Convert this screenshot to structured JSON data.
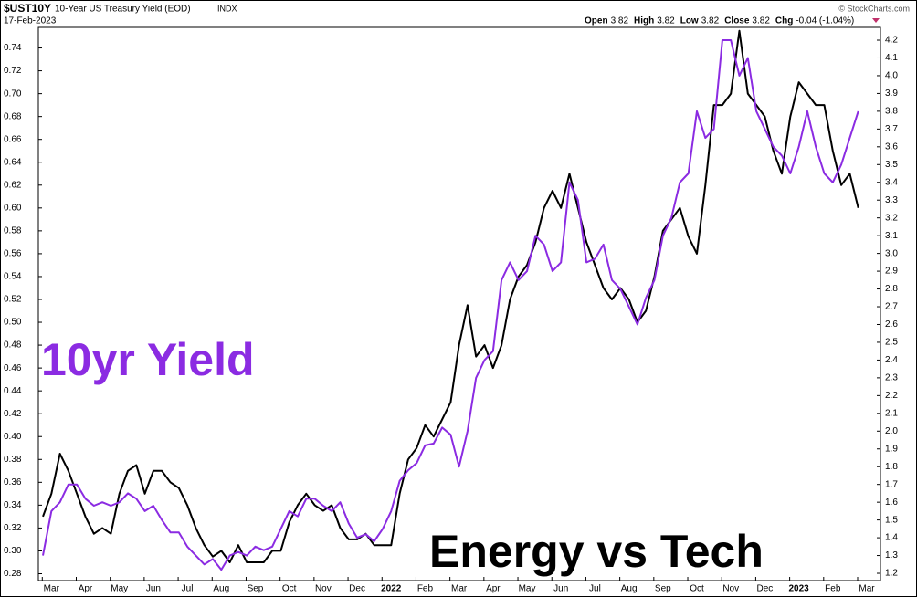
{
  "header": {
    "symbol": "$UST10Y",
    "name": "10-Year US Treasury Yield (EOD)",
    "exchange": "INDX",
    "date": "17-Feb-2023",
    "copyright": "© StockCharts.com",
    "quote": [
      {
        "label": "Open",
        "value": "3.82"
      },
      {
        "label": "High",
        "value": "3.82"
      },
      {
        "label": "Low",
        "value": "3.82"
      },
      {
        "label": "Close",
        "value": "3.82"
      },
      {
        "label": "Chg",
        "value": "-0.04 (-1.04%)"
      }
    ]
  },
  "chart_data": {
    "type": "line",
    "categories": [
      null,
      "Mar",
      null,
      null,
      null,
      "Apr",
      null,
      null,
      null,
      "May",
      null,
      null,
      null,
      "Jun",
      null,
      null,
      null,
      "Jul",
      null,
      null,
      null,
      "Aug",
      null,
      null,
      null,
      "Sep",
      null,
      null,
      null,
      "Oct",
      null,
      null,
      null,
      "Nov",
      null,
      null,
      null,
      "Dec",
      null,
      null,
      null,
      "2022",
      null,
      null,
      null,
      "Feb",
      null,
      null,
      null,
      "Mar",
      null,
      null,
      null,
      "Apr",
      null,
      null,
      null,
      "May",
      null,
      null,
      null,
      "Jun",
      null,
      null,
      null,
      "Jul",
      null,
      null,
      null,
      "Aug",
      null,
      null,
      null,
      "Sep",
      null,
      null,
      null,
      "Oct",
      null,
      null,
      null,
      "Nov",
      null,
      null,
      null,
      "Dec",
      null,
      null,
      null,
      "2023",
      null,
      null,
      null,
      "Feb",
      null,
      null,
      null,
      "Mar"
    ],
    "series": [
      {
        "name": "Energy vs Tech",
        "color": "#000000",
        "axis": "y",
        "values": [
          0.33,
          0.35,
          0.385,
          0.37,
          0.35,
          0.33,
          0.315,
          0.32,
          0.315,
          0.35,
          0.37,
          0.375,
          0.35,
          0.37,
          0.37,
          0.36,
          0.355,
          0.34,
          0.32,
          0.305,
          0.295,
          0.3,
          0.29,
          0.305,
          0.29,
          0.29,
          0.29,
          0.3,
          0.3,
          0.325,
          0.34,
          0.35,
          0.34,
          0.335,
          0.34,
          0.32,
          0.31,
          0.31,
          0.315,
          0.305,
          0.305,
          0.305,
          0.35,
          0.38,
          0.39,
          0.41,
          0.4,
          0.415,
          0.43,
          0.48,
          0.515,
          0.47,
          0.48,
          0.46,
          0.48,
          0.52,
          0.54,
          0.55,
          0.57,
          0.6,
          0.615,
          0.6,
          0.63,
          0.6,
          0.57,
          0.55,
          0.53,
          0.52,
          0.53,
          0.52,
          0.5,
          0.51,
          0.54,
          0.58,
          0.59,
          0.6,
          0.575,
          0.56,
          0.62,
          0.69,
          0.69,
          0.7,
          0.755,
          0.7,
          0.69,
          0.68,
          0.65,
          0.63,
          0.68,
          0.71,
          0.7,
          0.69,
          0.69,
          0.65,
          0.62,
          0.63,
          0.6,
          null
        ]
      },
      {
        "name": "10yr Yield",
        "color": "#8b2be2",
        "axis": "y2",
        "values": [
          1.3,
          1.55,
          1.6,
          1.7,
          1.7,
          1.62,
          1.58,
          1.6,
          1.58,
          1.6,
          1.65,
          1.62,
          1.55,
          1.58,
          1.5,
          1.43,
          1.43,
          1.35,
          1.3,
          1.25,
          1.28,
          1.22,
          1.3,
          1.32,
          1.3,
          1.35,
          1.33,
          1.35,
          1.45,
          1.55,
          1.52,
          1.62,
          1.62,
          1.58,
          1.55,
          1.6,
          1.48,
          1.4,
          1.42,
          1.38,
          1.45,
          1.55,
          1.72,
          1.78,
          1.82,
          1.92,
          1.93,
          2.02,
          1.98,
          1.8,
          2.0,
          2.3,
          2.4,
          2.45,
          2.85,
          2.95,
          2.85,
          2.9,
          3.1,
          3.05,
          2.9,
          2.95,
          3.4,
          3.3,
          2.95,
          2.97,
          3.05,
          2.85,
          2.8,
          2.7,
          2.6,
          2.75,
          2.85,
          3.1,
          3.2,
          3.4,
          3.45,
          3.8,
          3.65,
          3.7,
          4.2,
          4.2,
          4.0,
          4.1,
          3.8,
          3.7,
          3.6,
          3.55,
          3.45,
          3.6,
          3.8,
          3.6,
          3.45,
          3.4,
          3.5,
          3.65,
          3.8,
          null
        ]
      }
    ],
    "ylim": [
      0.274,
      0.758
    ],
    "yticks": [
      0.28,
      {
        "value": 0.3,
        "label": "0.30"
      },
      0.32,
      0.34,
      0.36,
      0.38,
      {
        "value": 0.4,
        "label": "0.40"
      },
      0.42,
      0.44,
      0.46,
      0.48,
      {
        "value": 0.5,
        "label": "0.50"
      },
      0.52,
      0.54,
      0.56,
      0.58,
      {
        "value": 0.6,
        "label": "0.60"
      },
      0.62,
      0.64,
      0.66,
      0.68,
      {
        "value": 0.7,
        "label": "0.70"
      },
      0.72,
      0.74
    ],
    "y2lim": [
      1.159,
      4.272
    ],
    "y2ticks": [
      1.2,
      1.3,
      1.4,
      1.5,
      1.6,
      1.7,
      1.8,
      1.9,
      {
        "value": 2,
        "label": "2.0"
      },
      2.1,
      2.2,
      2.3,
      2.4,
      2.5,
      2.6,
      2.7,
      2.8,
      2.9,
      {
        "value": 3,
        "label": "3.0"
      },
      3.1,
      3.2,
      3.3,
      3.4,
      3.5,
      3.6,
      3.7,
      3.8,
      3.9,
      {
        "value": 4,
        "label": "4.0"
      },
      4.1,
      4.2
    ],
    "grid": false
  }
}
